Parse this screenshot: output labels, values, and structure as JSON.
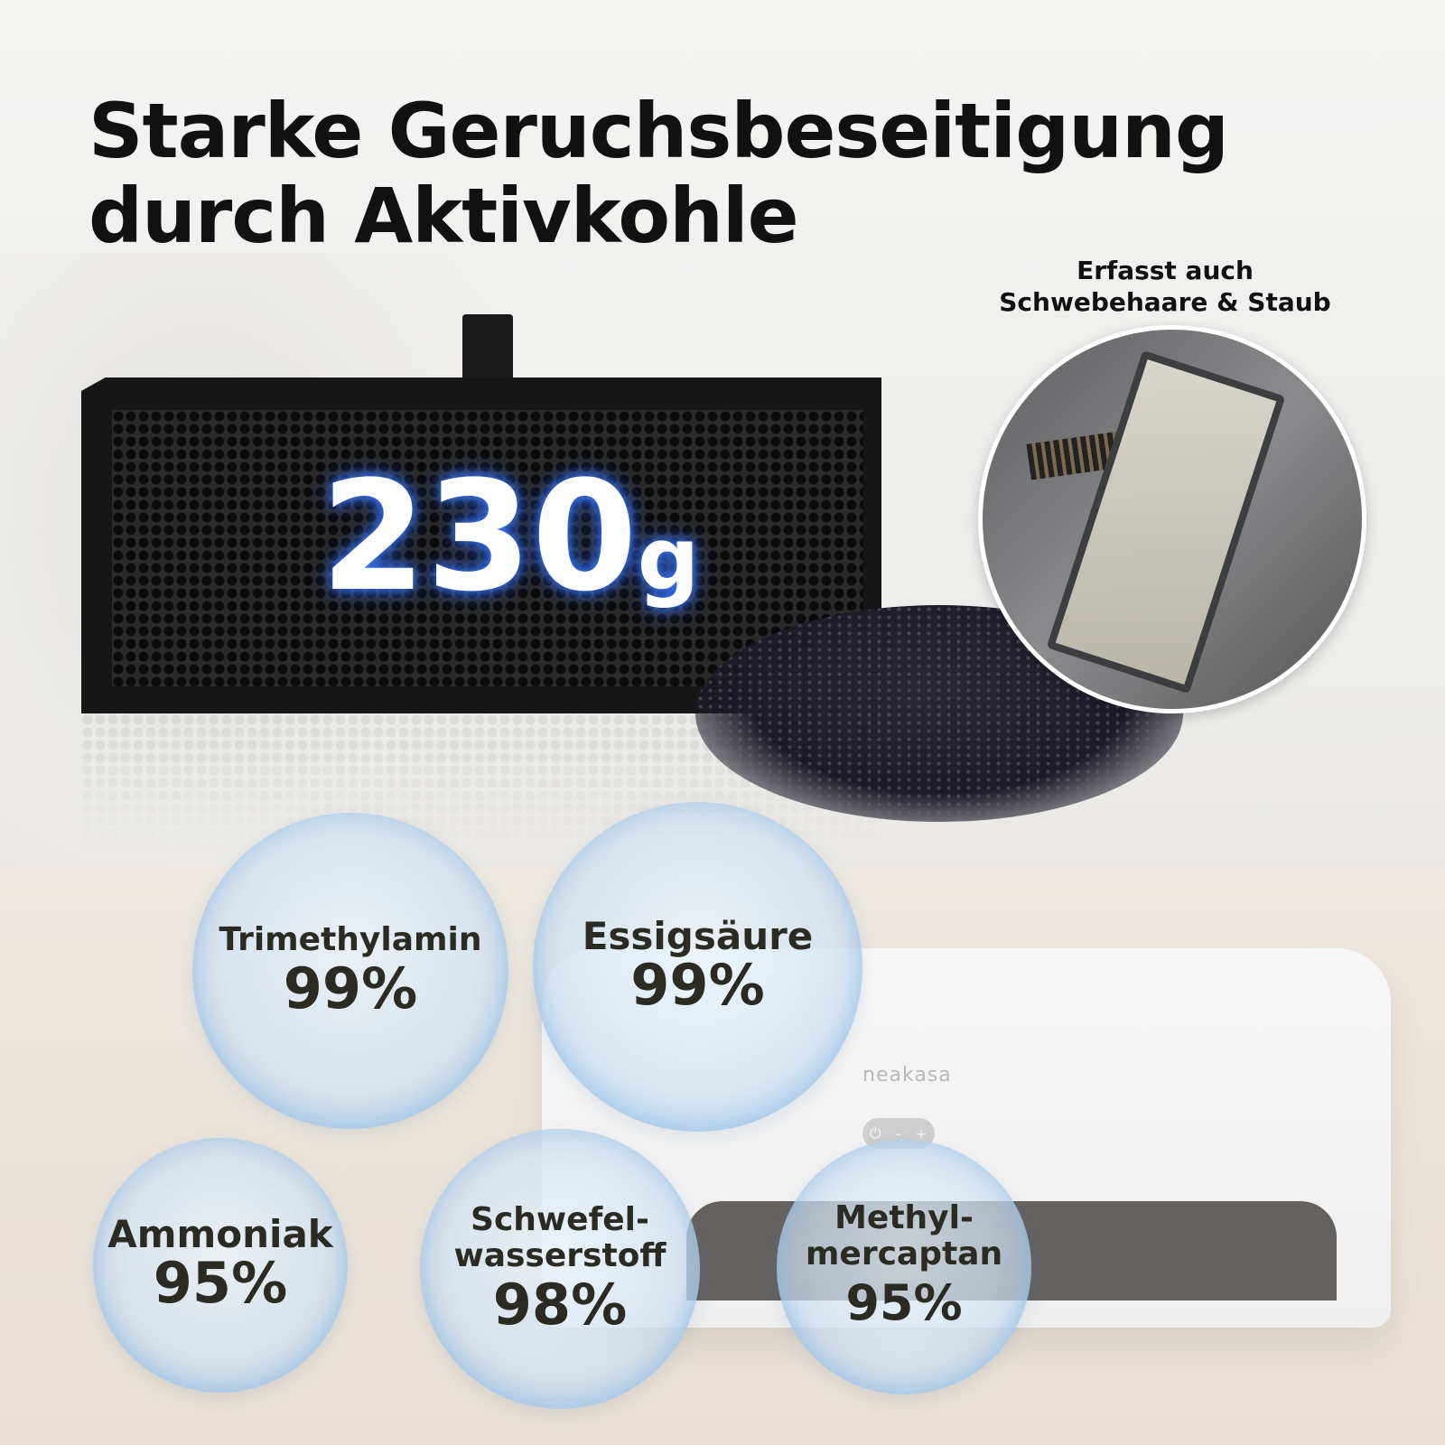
{
  "headline": {
    "line1": "Starke Geruchsbeseitigung",
    "line2": "durch Aktivkohle"
  },
  "filter": {
    "weight_value": "230",
    "weight_unit": "g"
  },
  "inset": {
    "caption_line1": "Erfasst auch",
    "caption_line2": "Schwebehaare & Staub"
  },
  "device": {
    "brand": "neakasa",
    "controls": [
      "⏻",
      "-",
      "+"
    ]
  },
  "bubbles": [
    {
      "name": "Trimethylamin",
      "percent": "99%"
    },
    {
      "name": "Essigsäure",
      "percent": "99%"
    },
    {
      "name": "Ammoniak",
      "percent": "95%"
    },
    {
      "name_line1": "Schwefel-",
      "name_line2": "wasserstoff",
      "percent": "98%"
    },
    {
      "name_line1": "Methyl-",
      "name_line2": "mercaptan",
      "percent": "95%"
    }
  ],
  "colors": {
    "glow": "#3b7bff",
    "text": "#111111",
    "bubble_text": "#2b2b24"
  }
}
